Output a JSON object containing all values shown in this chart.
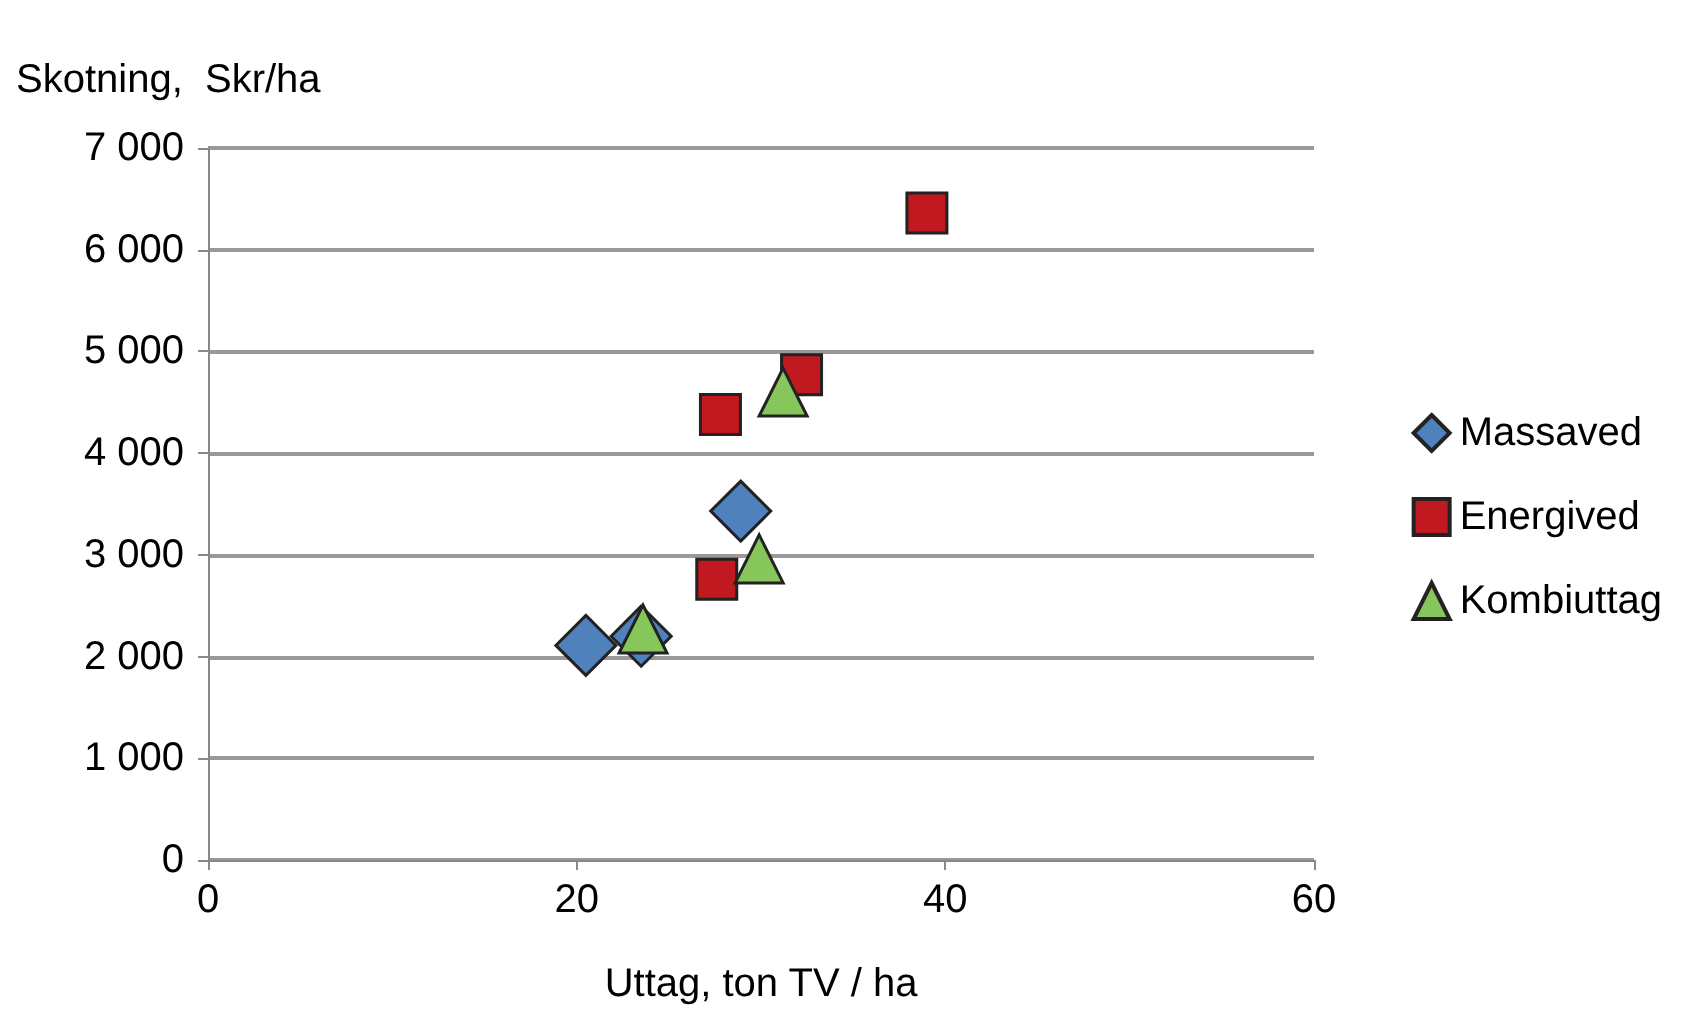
{
  "chart_data": {
    "type": "scatter",
    "ylabel": "Skotning,  Skr/ha",
    "xlabel": "Uttag, ton TV / ha",
    "xlim": [
      0,
      60
    ],
    "xticks": [
      0,
      20,
      40,
      60
    ],
    "ylim": [
      0,
      7000
    ],
    "yticks": [
      {
        "value": 0,
        "label": "0"
      },
      {
        "value": 1000,
        "label": "1 000"
      },
      {
        "value": 2000,
        "label": "2 000"
      },
      {
        "value": 3000,
        "label": "3 000"
      },
      {
        "value": 4000,
        "label": "4 000"
      },
      {
        "value": 5000,
        "label": "5 000"
      },
      {
        "value": 6000,
        "label": "6 000"
      },
      {
        "value": 7000,
        "label": "7 000"
      }
    ],
    "grid": "y",
    "legend": "right",
    "series": [
      {
        "name": "Massaved",
        "color": "#4f81bd",
        "marker": "diamond",
        "x": [
          20.5,
          23.5,
          28.9
        ],
        "values": [
          2110,
          2200,
          3430
        ]
      },
      {
        "name": "Energived",
        "color": "#c0191f",
        "marker": "square",
        "x": [
          39.0,
          27.8,
          32.2,
          27.6
        ],
        "values": [
          6360,
          4380,
          4770,
          2760
        ]
      },
      {
        "name": "Kombiuttag",
        "color": "#86c65a",
        "marker": "triangle",
        "x": [
          23.6,
          29.9,
          31.2
        ],
        "values": [
          2270,
          2960,
          4600
        ]
      }
    ]
  }
}
